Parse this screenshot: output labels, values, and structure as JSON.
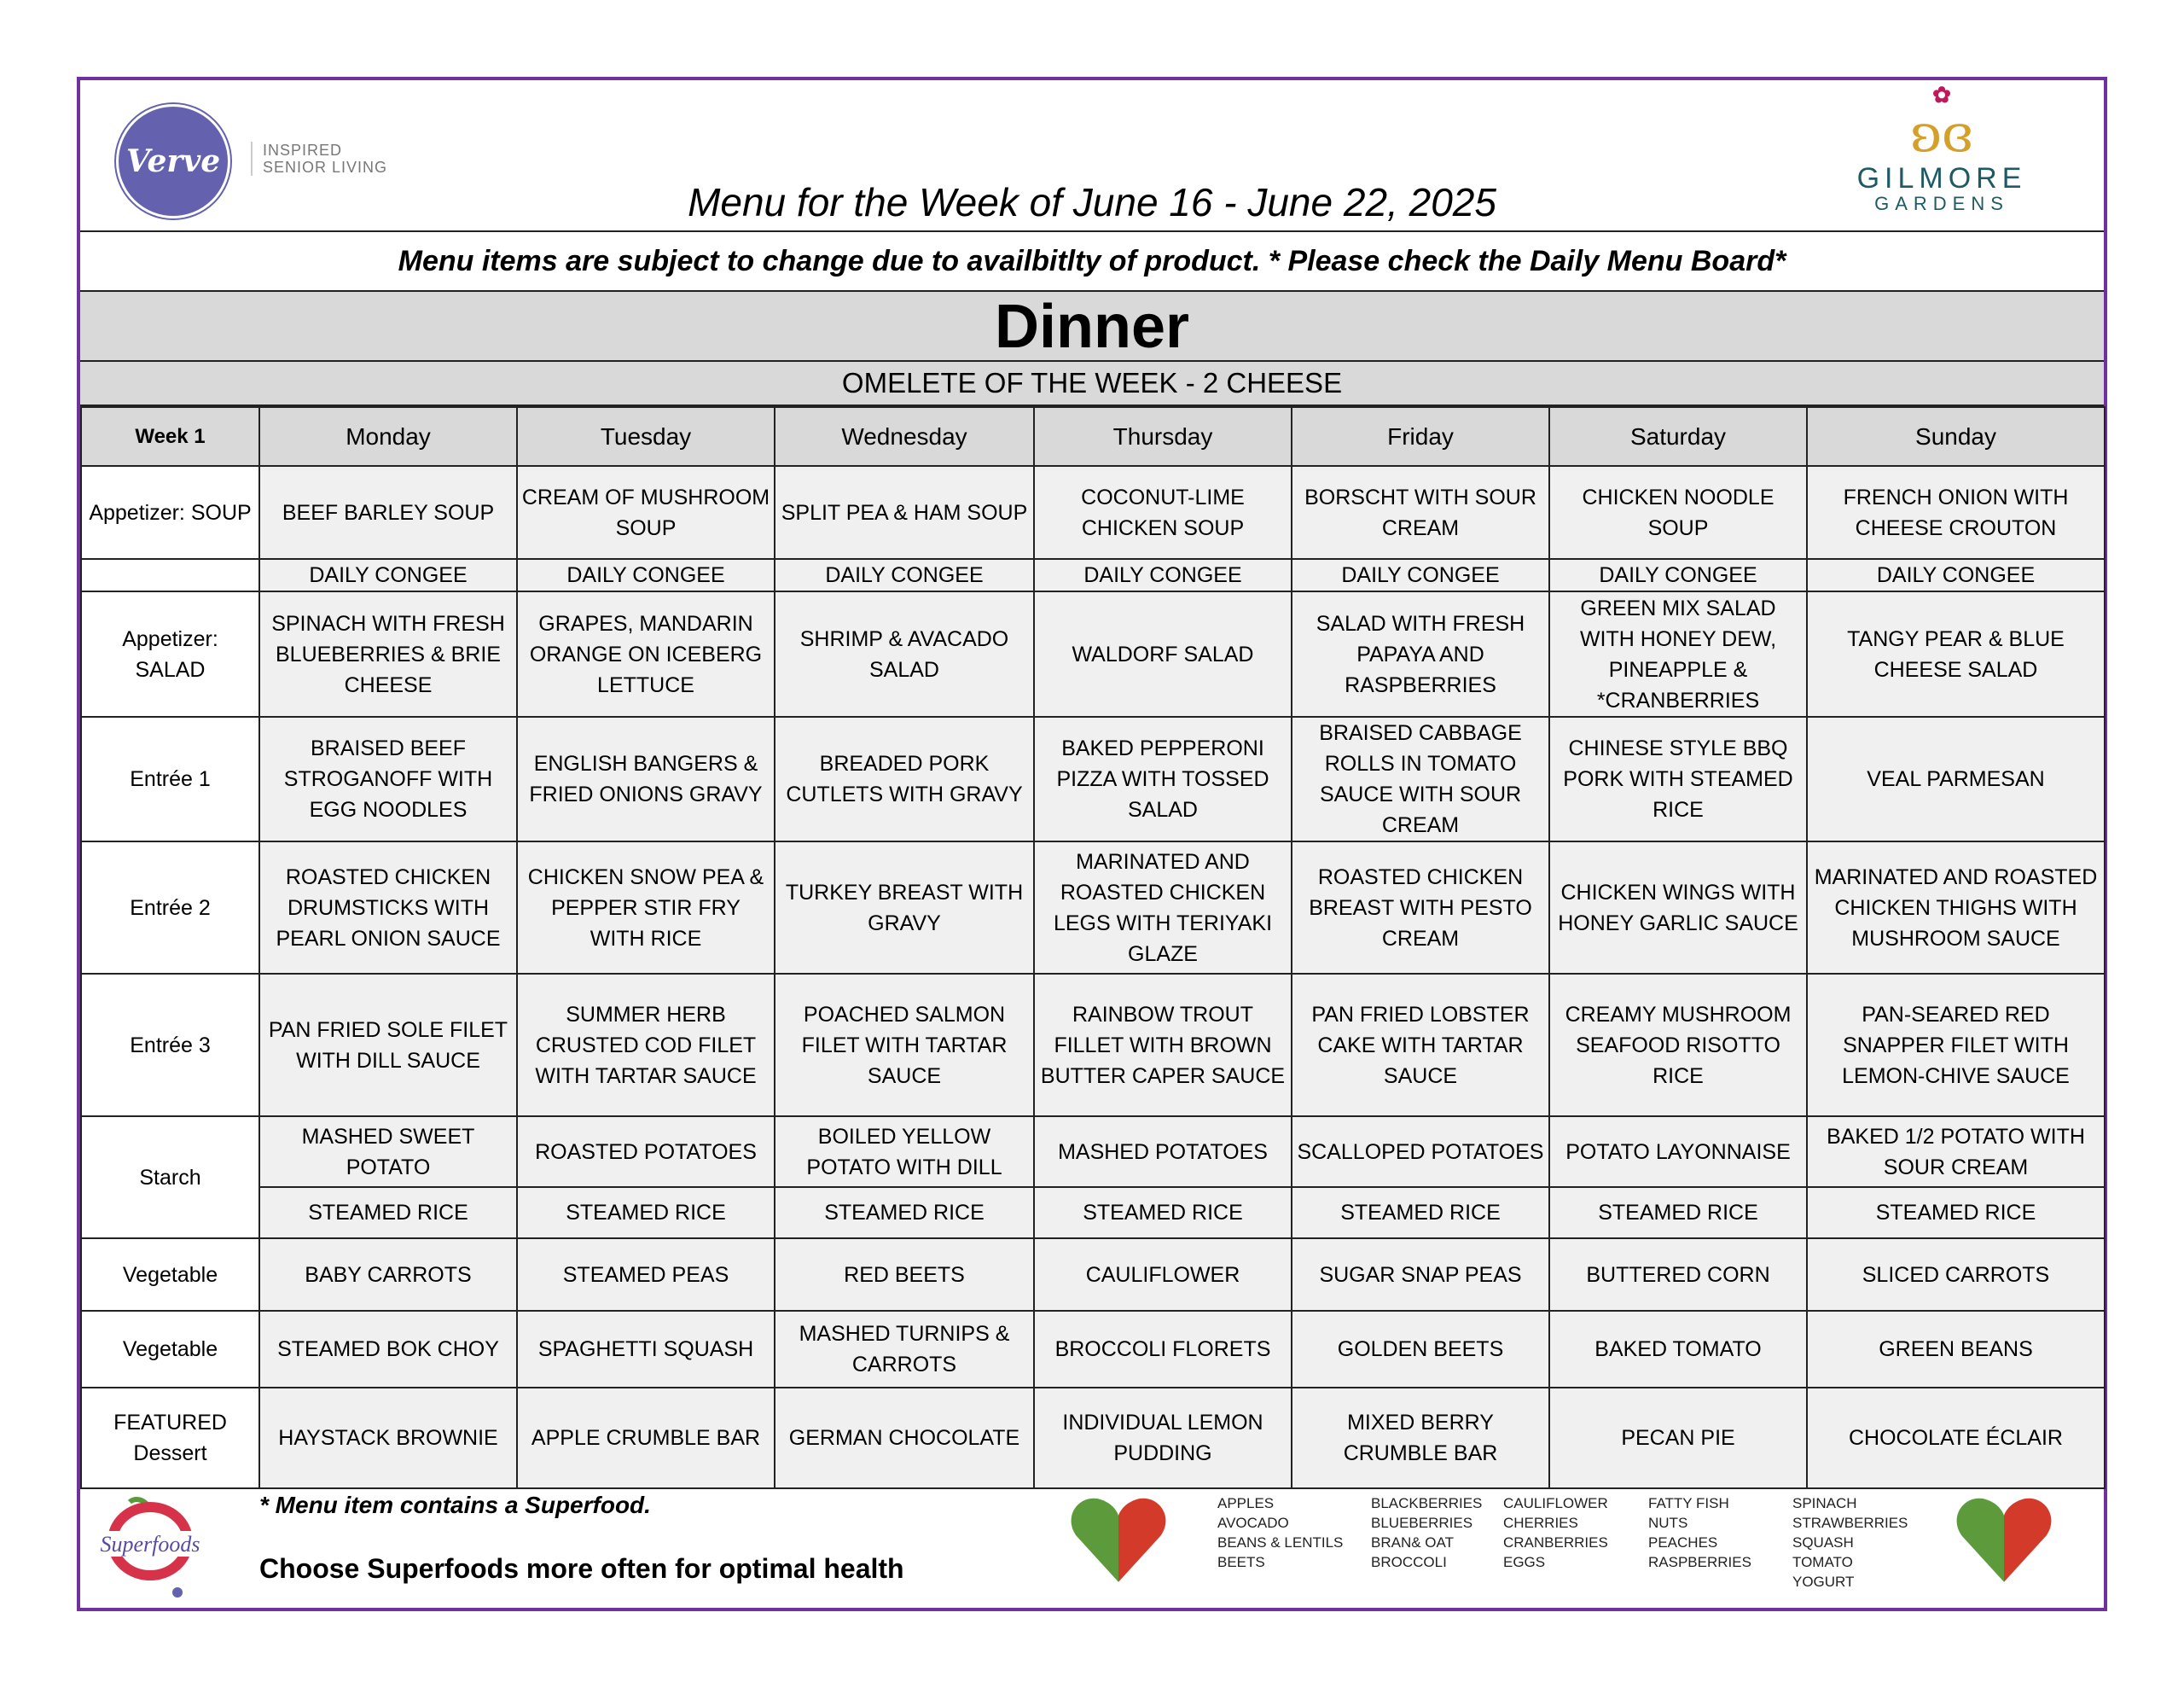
{
  "brand": {
    "verve": "Verve",
    "verve_tagline_1": "INSPIRED",
    "verve_tagline_2": "SENIOR LIVING",
    "gilmore_name": "GILMORE",
    "gilmore_sub": "GARDENS",
    "accent": "#7030a0"
  },
  "title": "Menu for the Week of June 16  - June 22, 2025",
  "notice": "Menu items are subject to change due to availbitlty of product. * Please check the Daily Menu Board*",
  "meal": "Dinner",
  "omelete": "OMELETE OF THE WEEK - 2 CHEESE",
  "week_label": "Week 1",
  "days": [
    "Monday",
    "Tuesday",
    "Wednesday",
    "Thursday",
    "Friday",
    "Saturday",
    "Sunday"
  ],
  "rows": [
    {
      "label": "Appetizer: SOUP",
      "cells": [
        "BEEF BARLEY SOUP",
        "CREAM OF MUSHROOM SOUP",
        "SPLIT PEA & HAM SOUP",
        "COCONUT-LIME CHICKEN SOUP",
        "BORSCHT WITH SOUR CREAM",
        "CHICKEN NOODLE SOUP",
        "FRENCH ONION WITH CHEESE CROUTON"
      ]
    },
    {
      "label": "",
      "cells": [
        "DAILY CONGEE",
        "DAILY CONGEE",
        "DAILY CONGEE",
        "DAILY CONGEE",
        "DAILY CONGEE",
        "DAILY CONGEE",
        "DAILY CONGEE"
      ]
    },
    {
      "label": "Appetizer: SALAD",
      "cells": [
        "SPINACH WITH FRESH BLUEBERRIES & BRIE CHEESE",
        "GRAPES, MANDARIN ORANGE ON ICEBERG LETTUCE",
        "SHRIMP & AVACADO SALAD",
        "WALDORF SALAD",
        "SALAD WITH FRESH PAPAYA AND RASPBERRIES",
        "GREEN MIX SALAD WITH HONEY DEW, PINEAPPLE &  *CRANBERRIES",
        "TANGY PEAR & BLUE CHEESE SALAD"
      ]
    },
    {
      "label": "Entrée 1",
      "cells": [
        "BRAISED BEEF STROGANOFF WITH EGG NOODLES",
        "ENGLISH BANGERS & FRIED ONIONS  GRAVY",
        "BREADED PORK CUTLETS WITH GRAVY",
        "BAKED PEPPERONI PIZZA WITH TOSSED SALAD",
        "BRAISED CABBAGE ROLLS IN TOMATO SAUCE WITH SOUR CREAM",
        "CHINESE STYLE BBQ PORK WITH STEAMED RICE",
        "VEAL PARMESAN"
      ]
    },
    {
      "label": "Entrée 2",
      "cells": [
        "ROASTED CHICKEN DRUMSTICKS WITH PEARL ONION SAUCE",
        "CHICKEN SNOW PEA & PEPPER STIR FRY WITH RICE",
        "TURKEY BREAST WITH GRAVY",
        "MARINATED AND ROASTED CHICKEN LEGS WITH TERIYAKI GLAZE",
        "ROASTED CHICKEN BREAST WITH PESTO CREAM",
        "CHICKEN WINGS WITH HONEY GARLIC SAUCE",
        "MARINATED AND ROASTED CHICKEN THIGHS WITH MUSHROOM SAUCE"
      ]
    },
    {
      "label": "Entrée 3",
      "cells": [
        "PAN FRIED SOLE FILET WITH DILL SAUCE",
        "SUMMER HERB CRUSTED COD FILET WITH TARTAR SAUCE",
        "POACHED SALMON FILET WITH TARTAR SAUCE",
        "RAINBOW TROUT FILLET WITH BROWN BUTTER CAPER SAUCE",
        "PAN FRIED LOBSTER CAKE WITH TARTAR SAUCE",
        "CREAMY MUSHROOM SEAFOOD RISOTTO RICE",
        "PAN-SEARED RED SNAPPER FILET WITH LEMON-CHIVE SAUCE"
      ]
    },
    {
      "label": "Starch",
      "span": 2,
      "cells": [
        "MASHED SWEET POTATO",
        "ROASTED POTATOES",
        "BOILED YELLOW POTATO WITH DILL",
        "MASHED POTATOES",
        "SCALLOPED POTATOES",
        "POTATO LAYONNAISE",
        "BAKED 1/2 POTATO WITH SOUR CREAM"
      ]
    },
    {
      "label": null,
      "cells": [
        "STEAMED RICE",
        "STEAMED RICE",
        "STEAMED RICE",
        "STEAMED RICE",
        "STEAMED RICE",
        "STEAMED RICE",
        "STEAMED RICE"
      ]
    },
    {
      "label": "Vegetable",
      "cells": [
        "BABY CARROTS",
        "STEAMED PEAS",
        "RED BEETS",
        "CAULIFLOWER",
        "SUGAR SNAP PEAS",
        "BUTTERED CORN",
        "SLICED CARROTS"
      ]
    },
    {
      "label": "Vegetable",
      "cells": [
        "STEAMED BOK CHOY",
        "SPAGHETTI SQUASH",
        "MASHED TURNIPS & CARROTS",
        "BROCCOLI FLORETS",
        "GOLDEN BEETS",
        "BAKED TOMATO",
        "GREEN BEANS"
      ]
    },
    {
      "label": "FEATURED Dessert",
      "cells": [
        "HAYSTACK BROWNIE",
        "APPLE CRUMBLE BAR",
        "GERMAN CHOCOLATE",
        "INDIVIDUAL LEMON PUDDING",
        "MIXED BERRY CRUMBLE BAR",
        "PECAN PIE",
        "CHOCOLATE ÉCLAIR"
      ]
    }
  ],
  "footer": {
    "superfoods_logo": "Superfoods",
    "note": "* Menu item contains a Superfood.",
    "choose": "Choose Superfoods more often for optimal health",
    "superfood_columns": [
      [
        "APPLES",
        "AVOCADO",
        "BEANS & LENTILS",
        "BEETS"
      ],
      [
        "BLACKBERRIES",
        "BLUEBERRIES",
        "BRAN& OAT",
        "BROCCOLI"
      ],
      [
        "CAULIFLOWER",
        "CHERRIES",
        "CRANBERRIES",
        "EGGS"
      ],
      [
        "FATTY FISH",
        "NUTS",
        "PEACHES",
        "RASPBERRIES"
      ],
      [
        "SPINACH",
        "STRAWBERRIES",
        "SQUASH",
        "TOMATO",
        "YOGURT"
      ]
    ]
  }
}
